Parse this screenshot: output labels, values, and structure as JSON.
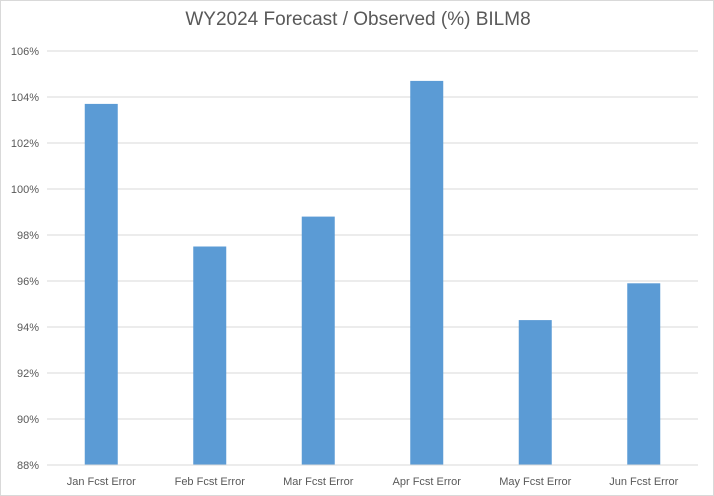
{
  "chart_data": {
    "type": "bar",
    "title": "WY2024 Forecast / Observed (%) BILM8",
    "xlabel": "",
    "ylabel": "",
    "categories": [
      "Jan Fcst Error",
      "Feb Fcst Error",
      "Mar Fcst Error",
      "Apr Fcst Error",
      "May Fcst Error",
      "Jun Fcst Error"
    ],
    "values": [
      103.7,
      97.5,
      98.8,
      104.7,
      94.3,
      95.9
    ],
    "ylim": [
      88,
      106
    ],
    "yticks": [
      88,
      90,
      92,
      94,
      96,
      98,
      100,
      102,
      104,
      106
    ],
    "ytick_labels": [
      "88%",
      "90%",
      "92%",
      "94%",
      "96%",
      "98%",
      "100%",
      "102%",
      "104%",
      "106%"
    ],
    "grid": true,
    "legend": "none",
    "bar_color": "#5b9bd5",
    "grid_color": "#d9d9d9"
  }
}
